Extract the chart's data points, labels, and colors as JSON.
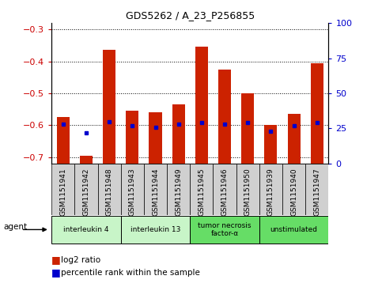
{
  "title": "GDS5262 / A_23_P256855",
  "samples": [
    "GSM1151941",
    "GSM1151942",
    "GSM1151948",
    "GSM1151943",
    "GSM1151944",
    "GSM1151949",
    "GSM1151945",
    "GSM1151946",
    "GSM1151950",
    "GSM1151939",
    "GSM1151940",
    "GSM1151947"
  ],
  "log2_ratio": [
    -0.575,
    -0.695,
    -0.365,
    -0.555,
    -0.56,
    -0.535,
    -0.355,
    -0.425,
    -0.5,
    -0.6,
    -0.565,
    -0.405
  ],
  "percentile": [
    28,
    22,
    30,
    27,
    26,
    28,
    29,
    28,
    29,
    23,
    27,
    29
  ],
  "agents": [
    {
      "label": "interleukin 4",
      "start": 0,
      "end": 3,
      "color": "#c8f5c8"
    },
    {
      "label": "interleukin 13",
      "start": 3,
      "end": 6,
      "color": "#c8f5c8"
    },
    {
      "label": "tumor necrosis\nfactor-α",
      "start": 6,
      "end": 9,
      "color": "#66dd66"
    },
    {
      "label": "unstimulated",
      "start": 9,
      "end": 12,
      "color": "#66dd66"
    }
  ],
  "ylim_left": [
    -0.72,
    -0.28
  ],
  "ylim_right": [
    0,
    100
  ],
  "bar_color": "#cc2200",
  "dot_color": "#0000cc",
  "bg_color": "#ffffff",
  "plot_bg": "#ffffff",
  "grid_color": "#000000",
  "yticks_left": [
    -0.7,
    -0.6,
    -0.5,
    -0.4,
    -0.3
  ],
  "yticks_right": [
    0,
    25,
    50,
    75,
    100
  ],
  "ylabel_left_color": "#cc0000",
  "ylabel_right_color": "#0000cc",
  "legend_items": [
    "log2 ratio",
    "percentile rank within the sample"
  ],
  "legend_colors": [
    "#cc2200",
    "#0000cc"
  ],
  "xticklabel_bg": "#d0d0d0"
}
